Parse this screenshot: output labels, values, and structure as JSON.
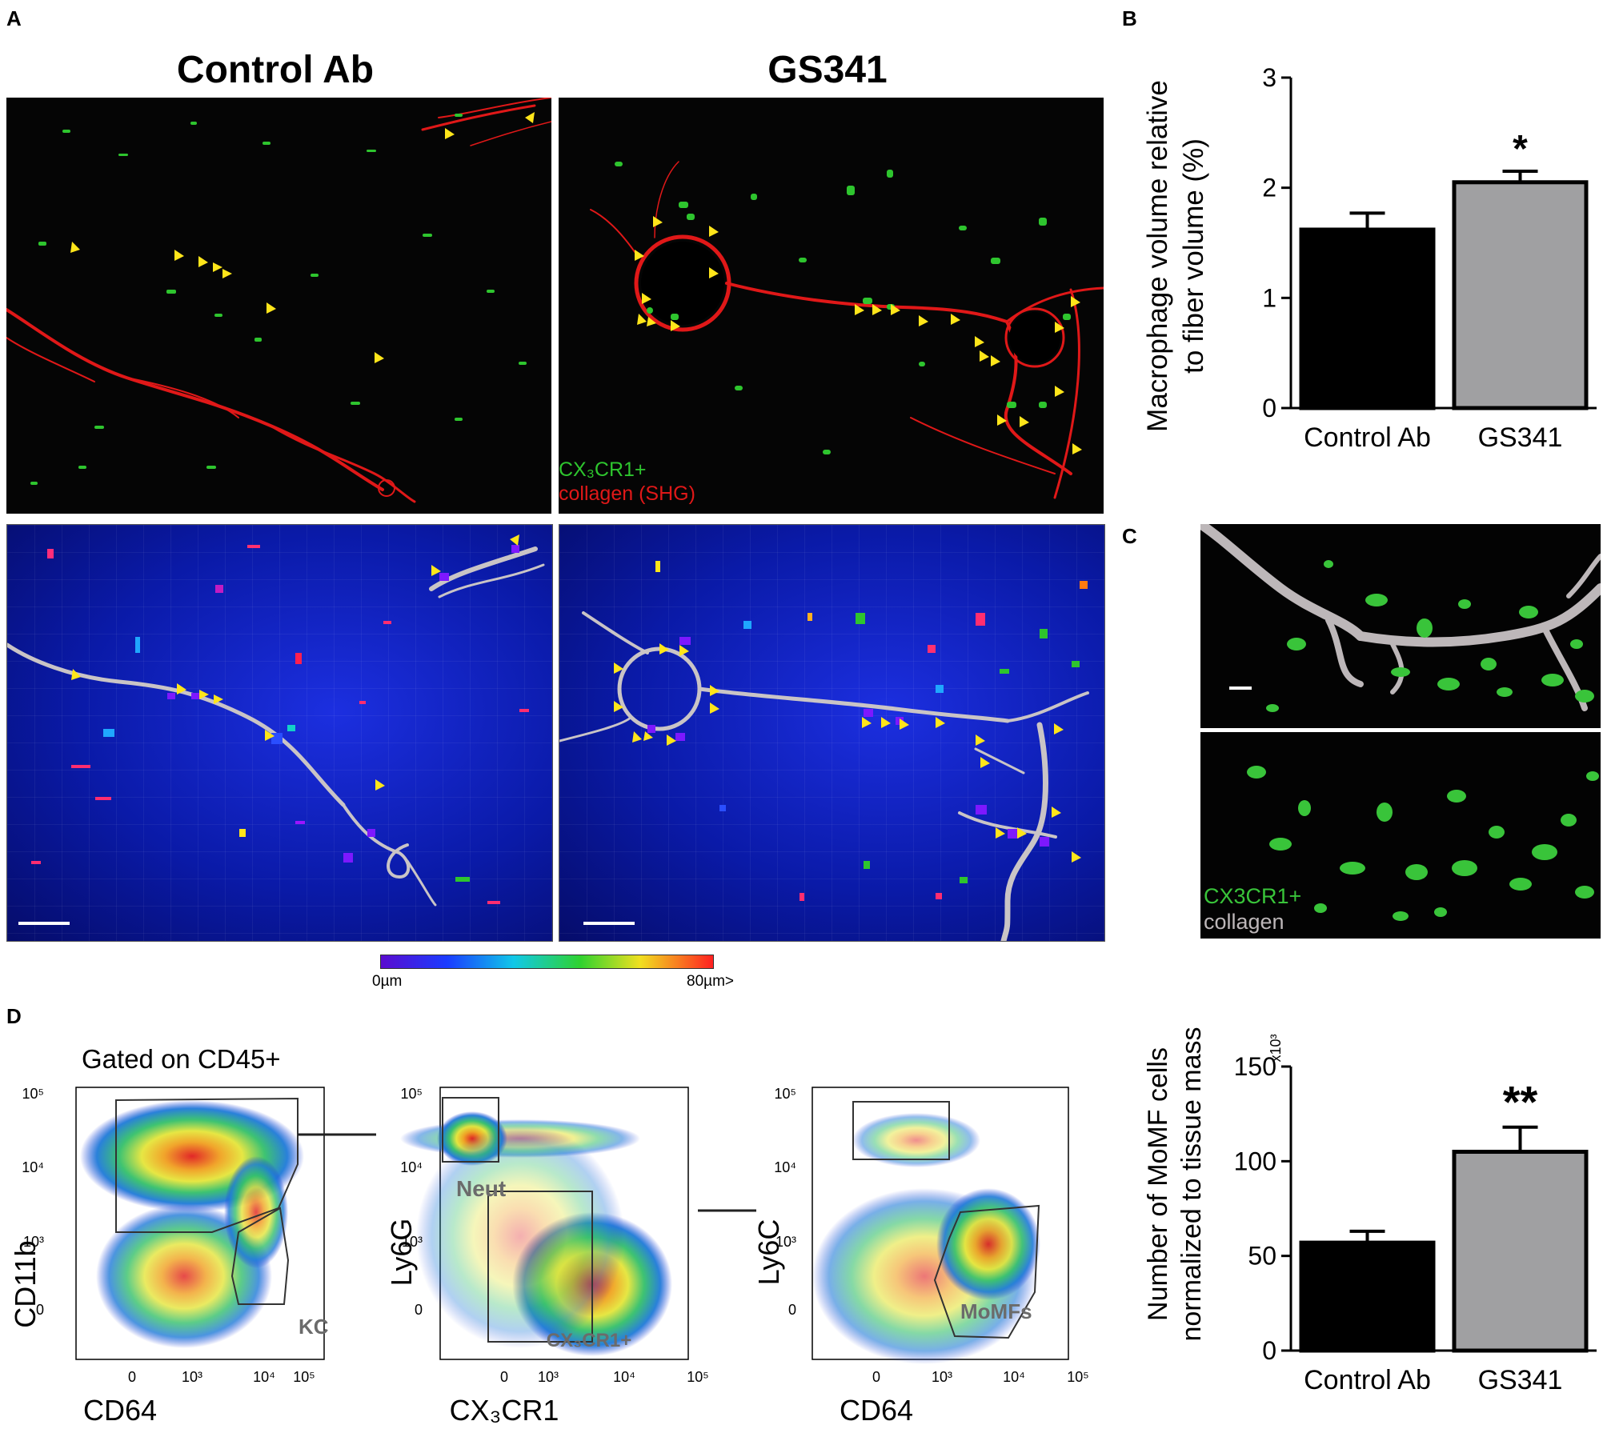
{
  "panel_labels": {
    "a": "A",
    "b": "B",
    "c": "C",
    "d": "D"
  },
  "panel_a": {
    "titles": [
      "Control Ab",
      "GS341"
    ],
    "legend": [
      "CX₃CR1+",
      "collagen (SHG)"
    ],
    "colorbar": {
      "min_label": "0µm",
      "max_label": "80µm>"
    }
  },
  "panel_c": {
    "legend": [
      "CX3CR1+",
      "collagen"
    ]
  },
  "panel_d": {
    "gate_title": "Gated on CD45+",
    "plots": [
      {
        "x_label": "CD64",
        "y_label": "CD11b",
        "gates": [
          "KC"
        ]
      },
      {
        "x_label": "CX₃CR1",
        "y_label": "Ly6G",
        "gates": [
          "Neut",
          "CX₃CR1+"
        ]
      },
      {
        "x_label": "CD64",
        "y_label": "Ly6C",
        "gates": [
          "MoMFs"
        ]
      }
    ],
    "x_ticks": [
      "0",
      "10³",
      "10⁴",
      "10⁵"
    ],
    "y_ticks": [
      "10⁵",
      "10⁴",
      "10³",
      "0"
    ]
  },
  "colors": {
    "control_bar": "#000000",
    "gs341_bar": "#a0a0a2",
    "collagen": "#e01818",
    "cx3cr1": "#2ec52e",
    "arrow": "#ffe51a",
    "gate_label": "#6b6b6b"
  },
  "chart_data": [
    {
      "id": "panel-b",
      "type": "bar",
      "categories": [
        "Control Ab",
        "GS341"
      ],
      "values": [
        1.62,
        2.05
      ],
      "errors": [
        0.15,
        0.1
      ],
      "significance": [
        "",
        "*"
      ],
      "title": "",
      "xlabel": "",
      "ylabel_lines": [
        "Macrophage volume relative",
        "to fiber volume (%)"
      ],
      "ylim": [
        0,
        3
      ],
      "yticks": [
        0,
        1,
        2,
        3
      ],
      "grid": false
    },
    {
      "id": "panel-d-bars",
      "type": "bar",
      "categories": [
        "Control Ab",
        "GS341"
      ],
      "values": [
        57,
        105
      ],
      "errors": [
        6,
        13
      ],
      "significance": [
        "",
        "**"
      ],
      "title": "",
      "xlabel": "",
      "ylabel_lines": [
        "Number of MoMF cells",
        "normalized to tissue mass"
      ],
      "multiplier": "x10³",
      "ylim": [
        0,
        150
      ],
      "yticks": [
        0,
        50,
        100,
        150
      ],
      "grid": false
    }
  ]
}
